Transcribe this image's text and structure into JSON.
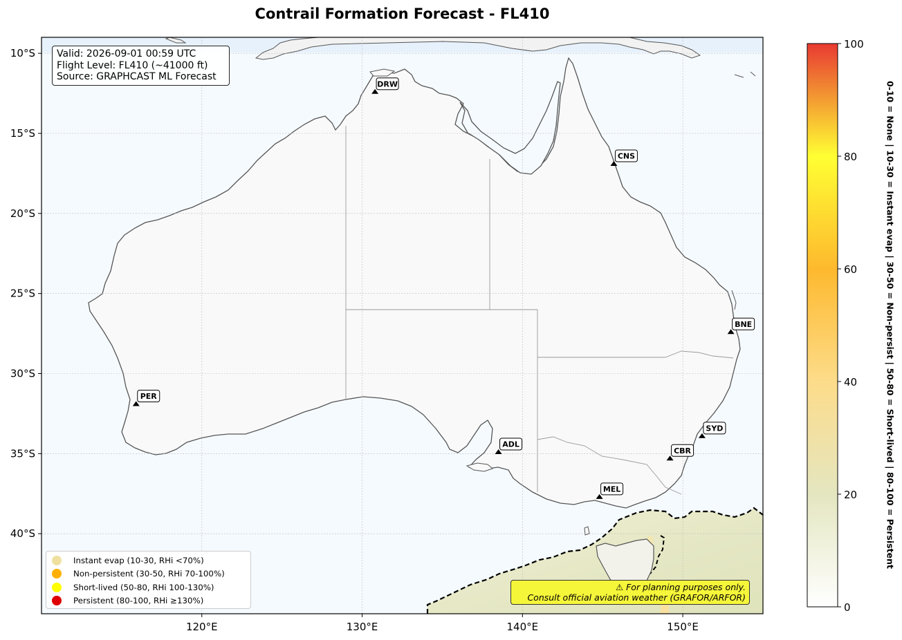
{
  "title": "Contrail Formation Forecast - FL410",
  "info": {
    "valid": "Valid: 2026-09-01 00:59 UTC",
    "flight_level": "Flight Level: FL410 (~41000 ft)",
    "source": "Source: GRAPHCAST ML Forecast"
  },
  "map": {
    "lon_range": [
      110,
      155
    ],
    "lat_range": [
      -45,
      -9
    ],
    "x_ticks": [
      {
        "lon": 120,
        "label": "120°E"
      },
      {
        "lon": 130,
        "label": "130°E"
      },
      {
        "lon": 140,
        "label": "140°E"
      },
      {
        "lon": 150,
        "label": "150°E"
      }
    ],
    "y_ticks": [
      {
        "lat": -10,
        "label": "10°S"
      },
      {
        "lat": -15,
        "label": "15°S"
      },
      {
        "lat": -20,
        "label": "20°S"
      },
      {
        "lat": -25,
        "label": "25°S"
      },
      {
        "lat": -30,
        "label": "30°S"
      },
      {
        "lat": -35,
        "label": "35°S"
      },
      {
        "lat": -40,
        "label": "40°S"
      }
    ],
    "gridlines": true,
    "ocean_color": "#f5faff",
    "land_color": "#f9f9f9",
    "coast_color": "#555555"
  },
  "airports": [
    {
      "code": "DRW",
      "lon": 130.8,
      "lat": -12.4
    },
    {
      "code": "CNS",
      "lon": 145.7,
      "lat": -16.9
    },
    {
      "code": "BNE",
      "lon": 153.0,
      "lat": -27.4
    },
    {
      "code": "PER",
      "lon": 115.9,
      "lat": -31.9
    },
    {
      "code": "SYD",
      "lon": 151.2,
      "lat": -33.9
    },
    {
      "code": "CBR",
      "lon": 149.2,
      "lat": -35.3
    },
    {
      "code": "ADL",
      "lon": 138.5,
      "lat": -34.9
    },
    {
      "code": "MEL",
      "lon": 144.8,
      "lat": -37.7
    }
  ],
  "legend": [
    {
      "label": "Instant evap (10-30, RHi <70%)",
      "color": "#f0e0a0"
    },
    {
      "label": "Non-persistent (30-50, RHi 70-100%)",
      "color": "#ffb000"
    },
    {
      "label": "Short-lived (50-80, RHi 100-130%)",
      "color": "#ffff00"
    },
    {
      "label": "Persistent (80-100, RHi ≥130%)",
      "color": "#e00000"
    }
  ],
  "disclaimer": {
    "line1": "⚠ For planning purposes only.",
    "line2": "Consult official aviation weather (GRAFOR/ARFOR)"
  },
  "colorbar": {
    "min": 0,
    "max": 100,
    "ticks": [
      "0",
      "20",
      "40",
      "60",
      "80",
      "100"
    ],
    "tick_values": [
      0,
      20,
      40,
      60,
      80,
      100
    ],
    "stops": [
      {
        "v": 0,
        "color": "#ffffff"
      },
      {
        "v": 20,
        "color": "#e4e6c0"
      },
      {
        "v": 40,
        "color": "#fddc8a"
      },
      {
        "v": 60,
        "color": "#fdb92e"
      },
      {
        "v": 80,
        "color": "#ffff33"
      },
      {
        "v": 100,
        "color": "#e83a32"
      }
    ],
    "side_label": "0-10 = None  |  10-30 = Instant evap  |  30-50 = Non-persist  |  50-80 = Short-lived  |  80-100 = Persistent"
  }
}
